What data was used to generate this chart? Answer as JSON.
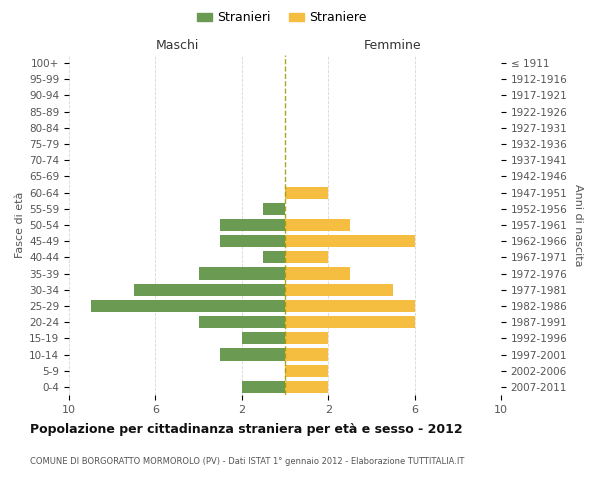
{
  "age_groups": [
    "0-4",
    "5-9",
    "10-14",
    "15-19",
    "20-24",
    "25-29",
    "30-34",
    "35-39",
    "40-44",
    "45-49",
    "50-54",
    "55-59",
    "60-64",
    "65-69",
    "70-74",
    "75-79",
    "80-84",
    "85-89",
    "90-94",
    "95-99",
    "100+"
  ],
  "birth_years": [
    "2007-2011",
    "2002-2006",
    "1997-2001",
    "1992-1996",
    "1987-1991",
    "1982-1986",
    "1977-1981",
    "1972-1976",
    "1967-1971",
    "1962-1966",
    "1957-1961",
    "1952-1956",
    "1947-1951",
    "1942-1946",
    "1937-1941",
    "1932-1936",
    "1927-1931",
    "1922-1926",
    "1917-1921",
    "1912-1916",
    "≤ 1911"
  ],
  "males": [
    2,
    0,
    3,
    2,
    4,
    9,
    7,
    4,
    1,
    3,
    3,
    1,
    0,
    0,
    0,
    0,
    0,
    0,
    0,
    0,
    0
  ],
  "females": [
    2,
    2,
    2,
    2,
    6,
    6,
    5,
    3,
    2,
    6,
    3,
    0,
    2,
    0,
    0,
    0,
    0,
    0,
    0,
    0,
    0
  ],
  "male_color": "#6b9a52",
  "female_color": "#f5be41",
  "center_line_color": "#999900",
  "grid_color": "#cccccc",
  "title": "Popolazione per cittadinanza straniera per età e sesso - 2012",
  "subtitle": "COMUNE DI BORGORATTO MORMOROLO (PV) - Dati ISTAT 1° gennaio 2012 - Elaborazione TUTTITALIA.IT",
  "xlabel_left": "Maschi",
  "xlabel_right": "Femmine",
  "ylabel_left": "Fasce di età",
  "ylabel_right": "Anni di nascita",
  "legend_male": "Stranieri",
  "legend_female": "Straniere",
  "xlim": 10,
  "background_color": "#ffffff"
}
